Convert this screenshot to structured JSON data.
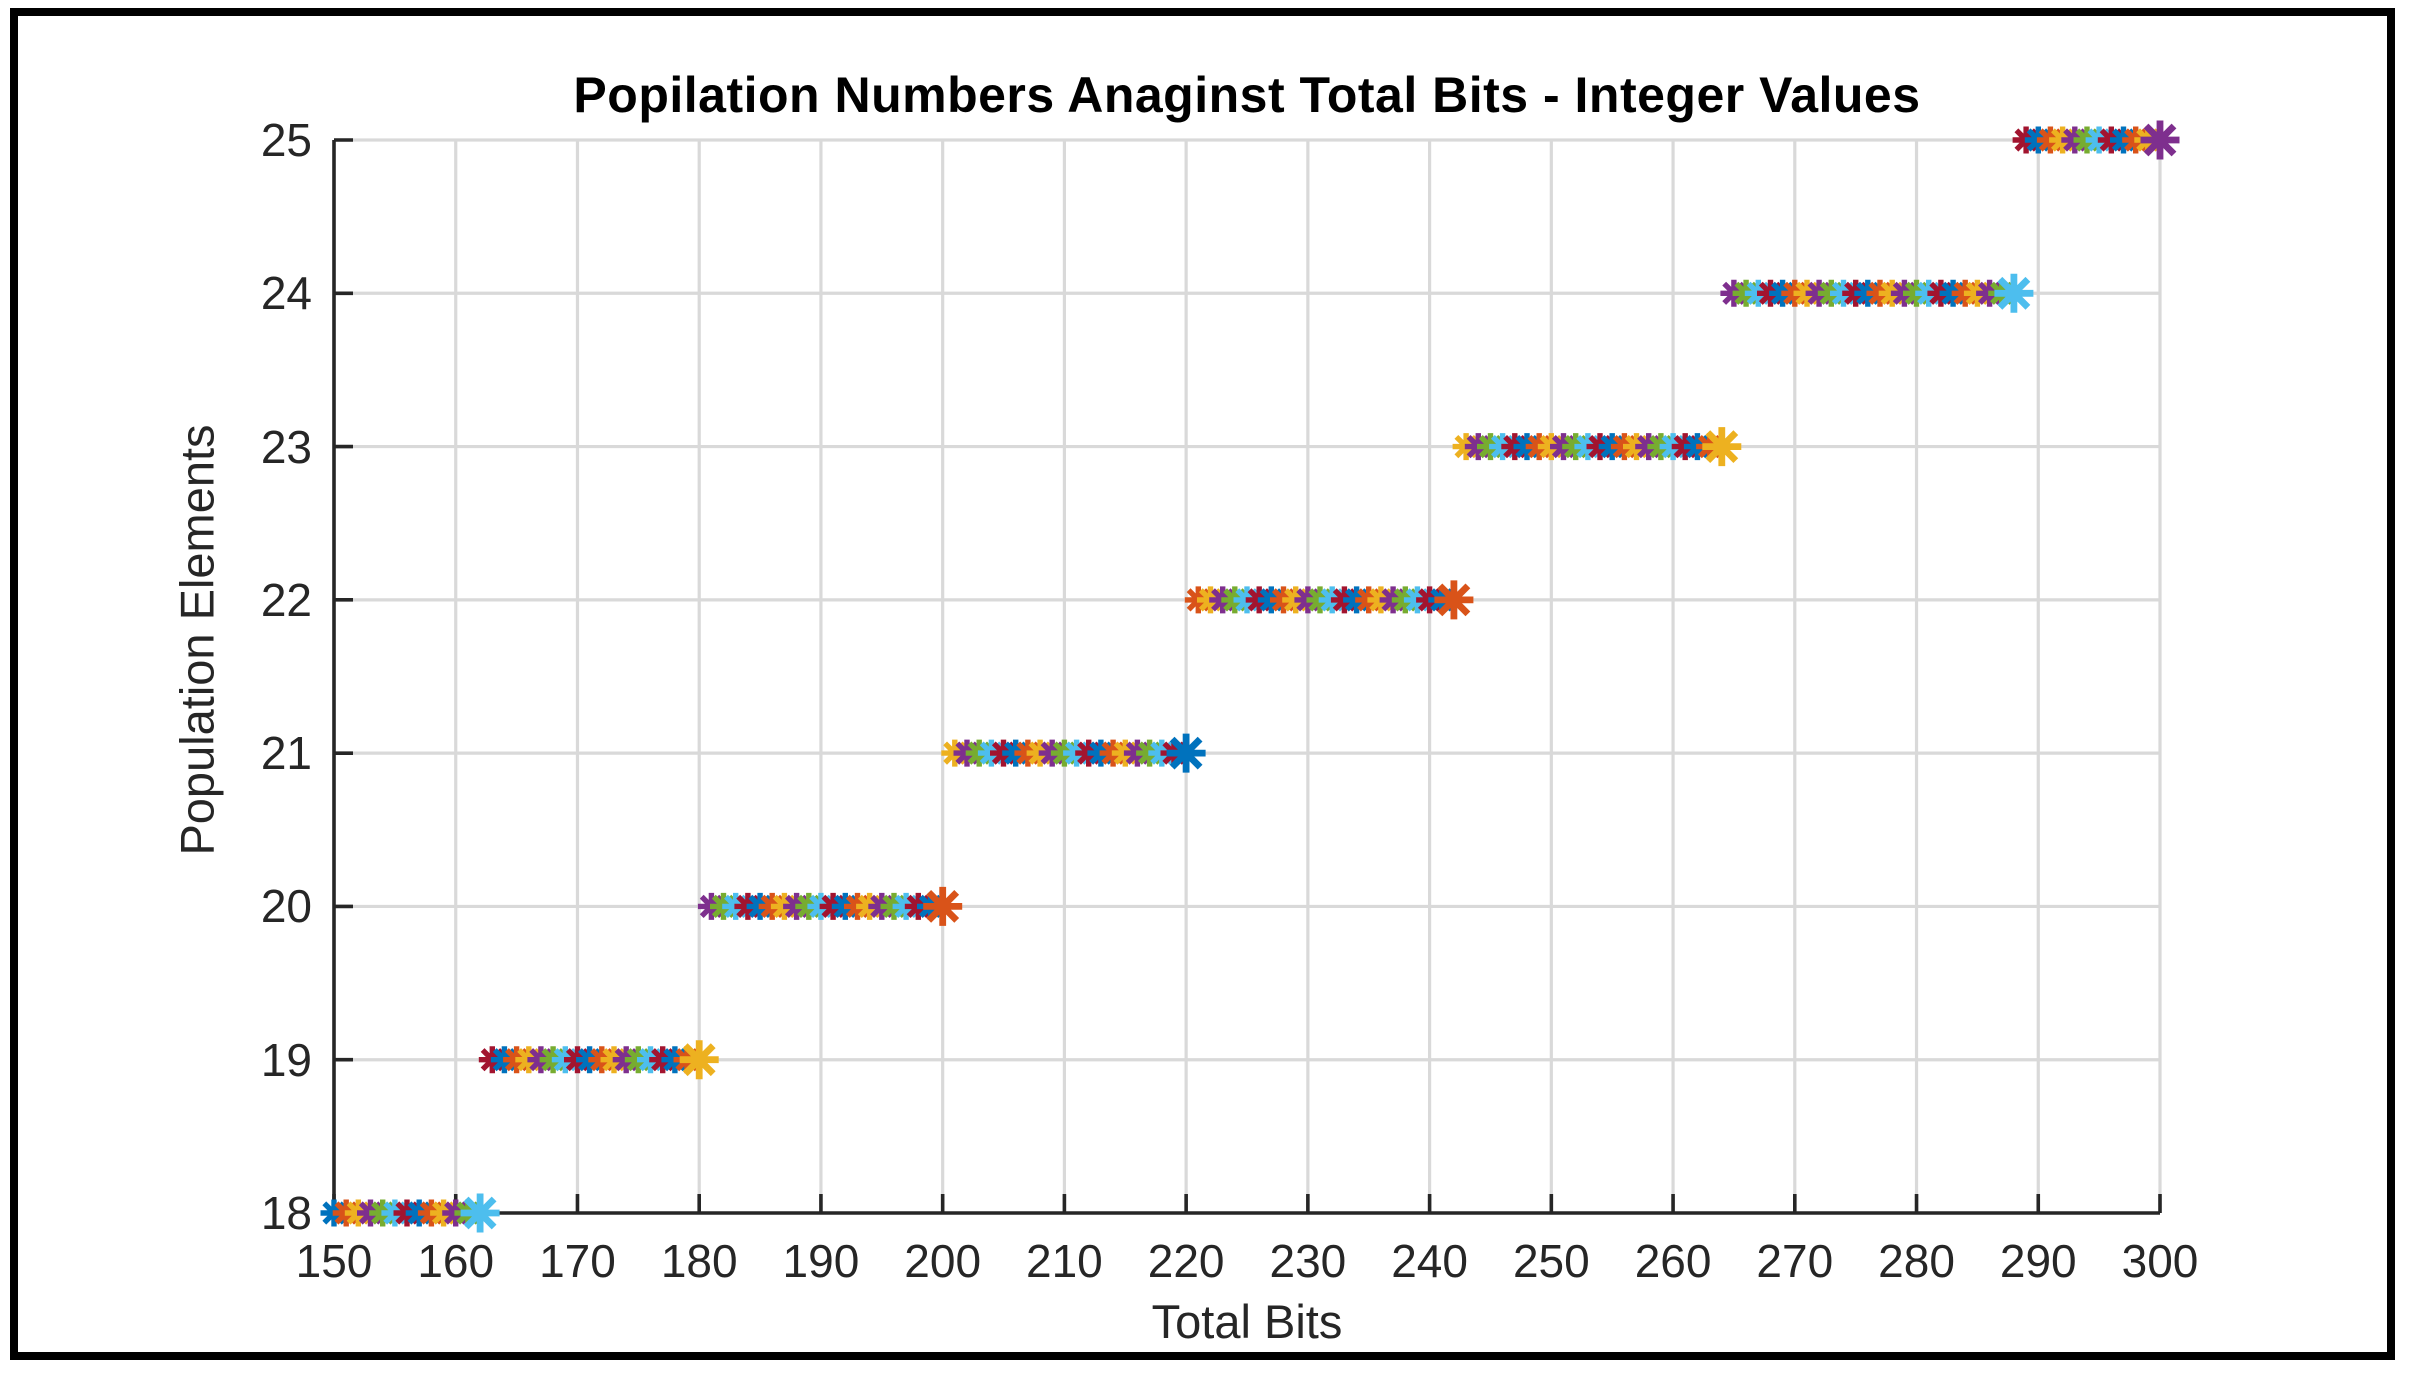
{
  "figure": {
    "title": "Popilation Numbers Anaginst Total Bits - Integer Values",
    "border_color": "#000000",
    "background_color": "#ffffff"
  },
  "chart_data": {
    "type": "scatter",
    "title": "Popilation Numbers Anaginst Total Bits - Integer Values",
    "xlabel": "Total Bits",
    "ylabel": "Population Elements",
    "xlim": [
      150,
      300
    ],
    "ylim": [
      18,
      25
    ],
    "x_ticks": [
      150,
      160,
      170,
      180,
      190,
      200,
      210,
      220,
      230,
      240,
      250,
      260,
      270,
      280,
      290,
      300
    ],
    "y_ticks": [
      18,
      19,
      20,
      21,
      22,
      23,
      24,
      25
    ],
    "grid": true,
    "grid_color": "#d9d9d9",
    "axis_color": "#262626",
    "marker": "asterisk",
    "marker_colors": [
      "#0072BD",
      "#D95319",
      "#EDB120",
      "#7E2F8E",
      "#77AC30",
      "#4DBEEE",
      "#A2142F"
    ],
    "color_rule": "marker color = marker_colors[(x - 150) mod 7], cycling continuously across all points",
    "point_rule": "one data point at every integer x from 150 to 300; y = population elements for that total-bits value",
    "bands": [
      {
        "population": 18,
        "x_start": 150,
        "x_end": 162
      },
      {
        "population": 19,
        "x_start": 163,
        "x_end": 180
      },
      {
        "population": 20,
        "x_start": 181,
        "x_end": 200
      },
      {
        "population": 21,
        "x_start": 201,
        "x_end": 220
      },
      {
        "population": 22,
        "x_start": 221,
        "x_end": 242
      },
      {
        "population": 23,
        "x_start": 243,
        "x_end": 264
      },
      {
        "population": 24,
        "x_start": 265,
        "x_end": 288
      },
      {
        "population": 25,
        "x_start": 289,
        "x_end": 300
      }
    ],
    "emphasized_points_x": [
      162,
      180,
      200,
      220,
      242,
      264,
      288,
      300
    ],
    "emphasis_note": "last point of each population band is drawn with a larger asterisk",
    "legend": null
  }
}
